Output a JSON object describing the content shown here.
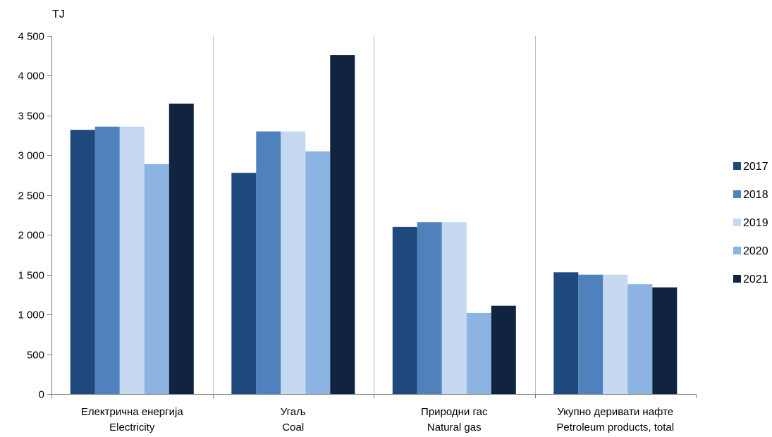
{
  "chart_data": {
    "type": "bar",
    "ylabel": "TJ",
    "ylim": [
      0,
      4500
    ],
    "yticks": [
      0,
      500,
      1000,
      1500,
      2000,
      2500,
      3000,
      3500,
      4000,
      4500
    ],
    "ytick_labels": [
      "0",
      "500",
      "1 000",
      "1 500",
      "2 000",
      "2 500",
      "3 000",
      "3 500",
      "4 000",
      "4 500"
    ],
    "categories": [
      {
        "line1": "Електрична енергија",
        "line2": "Electricity"
      },
      {
        "line1": "Угаљ",
        "line2": "Coal"
      },
      {
        "line1": "Природни гас",
        "line2": "Natural gas"
      },
      {
        "line1": "Укупно деривати нафте",
        "line2": "Petroleum products, total"
      }
    ],
    "series": [
      {
        "name": "2017",
        "color": "#1f497d",
        "values": [
          3320,
          2780,
          2100,
          1530
        ]
      },
      {
        "name": "2018",
        "color": "#4f81bd",
        "values": [
          3360,
          3300,
          2160,
          1500
        ]
      },
      {
        "name": "2019",
        "color": "#c6d9f1",
        "values": [
          3360,
          3300,
          2160,
          1500
        ]
      },
      {
        "name": "2020",
        "color": "#8db3e2",
        "values": [
          2890,
          3050,
          1020,
          1380
        ]
      },
      {
        "name": "2021",
        "color": "#10243f",
        "values": [
          3650,
          4260,
          1110,
          1340
        ]
      }
    ],
    "grid": "vertical category separators",
    "legend_position": "right"
  }
}
